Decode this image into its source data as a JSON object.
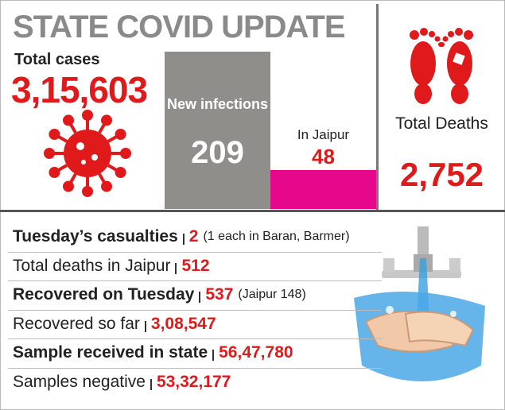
{
  "header": {
    "title": "STATE COVID UPDATE"
  },
  "total_cases": {
    "label": "Total cases",
    "value": "3,15,603"
  },
  "new_infections": {
    "label": "New infections",
    "value": "209"
  },
  "jaipur": {
    "label": "In Jaipur",
    "value": "48"
  },
  "total_deaths": {
    "label": "Total Deaths",
    "value": "2,752"
  },
  "rows": [
    {
      "label": "Tuesday’s casualties",
      "value": "2",
      "note": "(1 each in Baran, Barmer)"
    },
    {
      "label": "Total deaths in Jaipur",
      "value": "512"
    },
    {
      "label": "Recovered on Tuesday",
      "value": "537",
      "note": "(Jaipur 148)"
    },
    {
      "label": "Recovered so far",
      "value": "3,08,547"
    },
    {
      "label": "Sample received in state",
      "value": "56,47,780"
    },
    {
      "label": "Samples negative",
      "value": "53,32,177"
    }
  ]
}
